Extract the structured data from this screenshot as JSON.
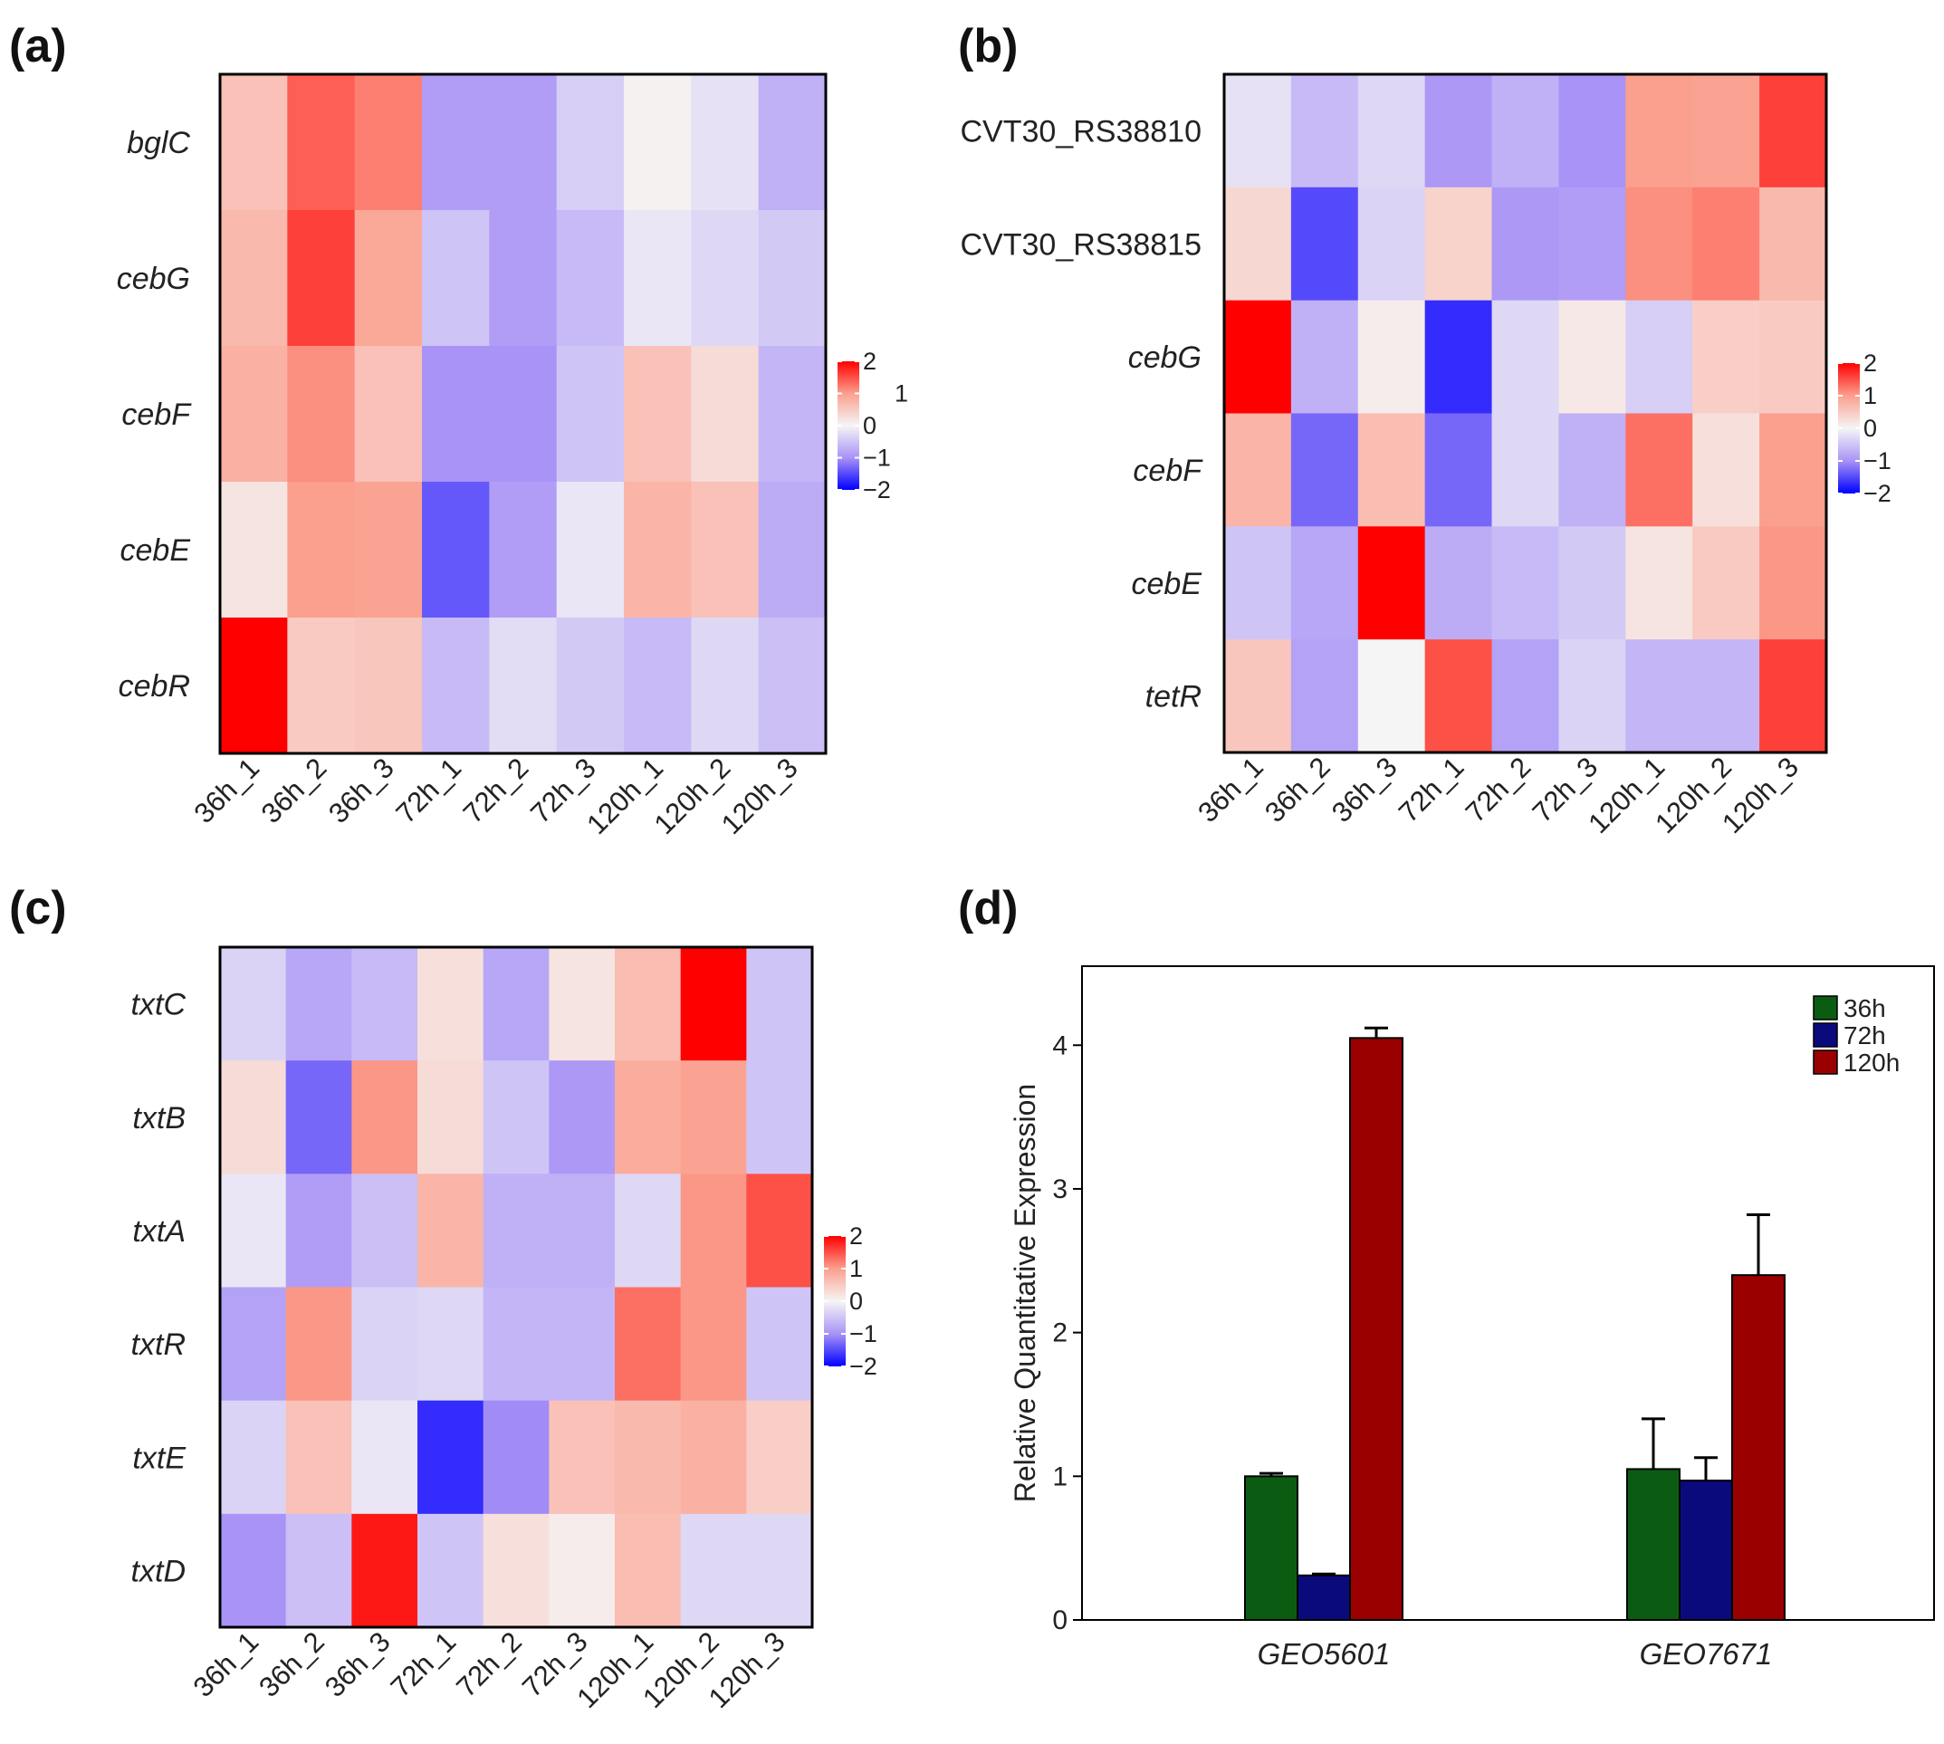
{
  "chart_data": [
    {
      "type": "heatmap",
      "panel": "(a)",
      "rows": [
        "bglC",
        "cebG",
        "cebF",
        "cebE",
        "cebR"
      ],
      "row_italic": [
        true,
        true,
        true,
        true,
        true
      ],
      "columns": [
        "36h_1",
        "36h_2",
        "36h_3",
        "72h_1",
        "72h_2",
        "72h_3",
        "120h_1",
        "120h_2",
        "120h_3"
      ],
      "values": [
        [
          0.6,
          1.4,
          1.2,
          -0.9,
          -0.9,
          -0.4,
          0.05,
          -0.2,
          -0.7
        ],
        [
          0.7,
          1.6,
          0.9,
          -0.5,
          -0.9,
          -0.6,
          -0.15,
          -0.3,
          -0.45
        ],
        [
          0.8,
          1.1,
          0.6,
          -1.0,
          -1.0,
          -0.5,
          0.6,
          0.3,
          -0.65
        ],
        [
          0.2,
          1.0,
          0.95,
          -1.4,
          -0.9,
          -0.15,
          0.75,
          0.6,
          -0.75
        ],
        [
          2.0,
          0.5,
          0.55,
          -0.6,
          -0.25,
          -0.45,
          -0.6,
          -0.3,
          -0.55
        ]
      ],
      "legend": {
        "ticks": [
          "2",
          "1",
          "0",
          "−1",
          "−2"
        ],
        "range": [
          -2,
          2
        ]
      }
    },
    {
      "type": "heatmap",
      "panel": "(b)",
      "rows": [
        "CVT30_RS38810",
        "CVT30_RS38815",
        "cebG",
        "cebF",
        "cebE",
        "tetR"
      ],
      "row_italic": [
        false,
        false,
        true,
        true,
        true,
        true
      ],
      "columns": [
        "36h_1",
        "36h_2",
        "36h_3",
        "72h_1",
        "72h_2",
        "72h_3",
        "120h_1",
        "120h_2",
        "120h_3"
      ],
      "values": [
        [
          -0.2,
          -0.6,
          -0.3,
          -0.95,
          -0.7,
          -1.0,
          1.0,
          0.95,
          1.6
        ],
        [
          0.35,
          -1.5,
          -0.35,
          0.4,
          -0.95,
          -0.9,
          1.1,
          1.2,
          0.7
        ],
        [
          2.0,
          -0.7,
          0.1,
          -1.7,
          -0.3,
          0.15,
          -0.4,
          0.45,
          0.5
        ],
        [
          0.75,
          -1.3,
          0.65,
          -1.3,
          -0.3,
          -0.7,
          1.3,
          0.25,
          1.0
        ],
        [
          -0.5,
          -0.8,
          2.0,
          -0.75,
          -0.6,
          -0.45,
          0.2,
          0.5,
          1.05
        ],
        [
          0.55,
          -0.85,
          0.0,
          1.5,
          -0.85,
          -0.35,
          -0.65,
          -0.65,
          1.6
        ]
      ],
      "legend": {
        "ticks": [
          "2",
          "1",
          "0",
          "−1",
          "−2"
        ],
        "range": [
          -2,
          2
        ]
      }
    },
    {
      "type": "heatmap",
      "panel": "(c)",
      "rows": [
        "txtC",
        "txtB",
        "txtA",
        "txtR",
        "txtE",
        "txtD"
      ],
      "row_italic": [
        true,
        true,
        true,
        true,
        true,
        true
      ],
      "columns": [
        "36h_1",
        "36h_2",
        "36h_3",
        "72h_1",
        "72h_2",
        "72h_3",
        "120h_1",
        "120h_2",
        "120h_3"
      ],
      "values": [
        [
          -0.35,
          -0.8,
          -0.6,
          0.25,
          -0.8,
          0.2,
          0.65,
          2.0,
          -0.5
        ],
        [
          0.3,
          -1.3,
          1.05,
          0.3,
          -0.5,
          -0.95,
          0.85,
          0.95,
          -0.5
        ],
        [
          -0.15,
          -0.9,
          -0.55,
          0.75,
          -0.7,
          -0.7,
          -0.3,
          1.05,
          1.5
        ],
        [
          -0.85,
          1.05,
          -0.35,
          -0.3,
          -0.65,
          -0.65,
          1.3,
          1.05,
          -0.5
        ],
        [
          -0.35,
          0.6,
          -0.15,
          -1.7,
          -1.05,
          0.6,
          0.7,
          0.8,
          0.45
        ],
        [
          -1.0,
          -0.55,
          1.85,
          -0.5,
          0.25,
          0.1,
          0.65,
          -0.3,
          -0.3
        ]
      ],
      "legend": {
        "ticks": [
          "2",
          "1",
          "0",
          "−1",
          "−2"
        ],
        "range": [
          -2,
          2
        ]
      }
    },
    {
      "type": "bar",
      "panel": "(d)",
      "categories": [
        "GEO5601",
        "GEO7671"
      ],
      "series": [
        {
          "name": "36h",
          "values": [
            1.0,
            1.05
          ],
          "errors": [
            0.02,
            0.35
          ],
          "color": "#0b5c12"
        },
        {
          "name": "72h",
          "values": [
            0.31,
            0.97
          ],
          "errors": [
            0.01,
            0.16
          ],
          "color": "#0a0a7d"
        },
        {
          "name": "120h",
          "values": [
            4.05,
            2.4
          ],
          "errors": [
            0.07,
            0.42
          ],
          "color": "#9a0000"
        }
      ],
      "ylabel": "Relative Quantitative Expression",
      "xlabel": "",
      "ylim": [
        0,
        4.55
      ],
      "yticks": [
        0,
        1,
        2,
        3,
        4
      ],
      "legend_position": "top-right"
    }
  ]
}
